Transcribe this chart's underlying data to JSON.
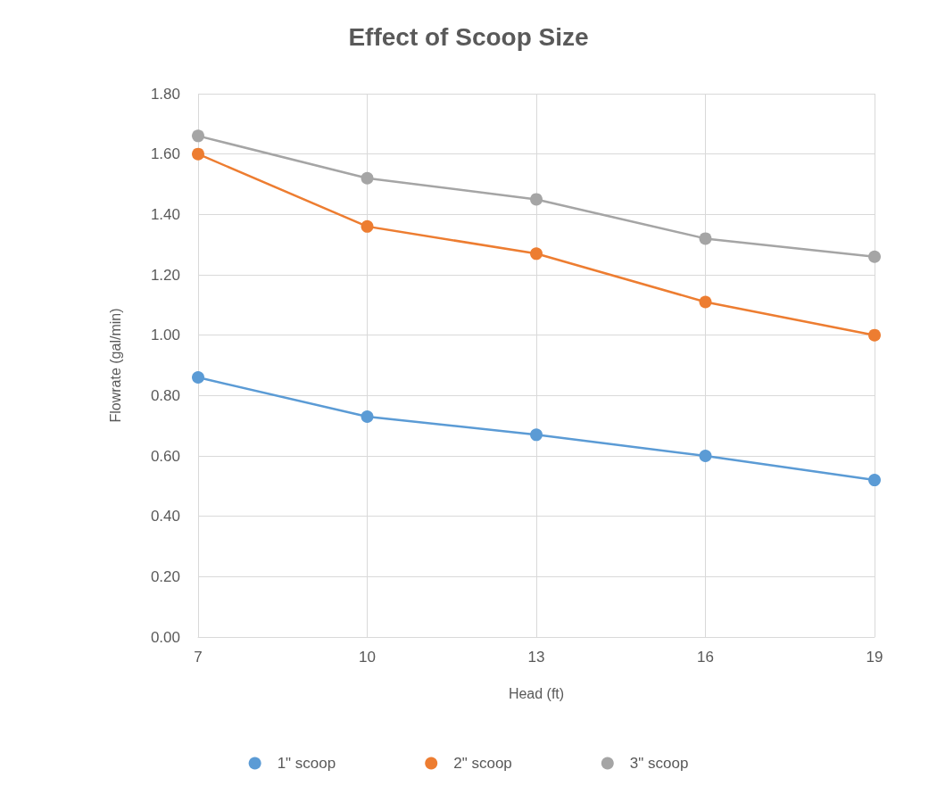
{
  "chart_data": {
    "type": "line",
    "title": "Effect of Scoop Size",
    "xlabel": "Head (ft)",
    "ylabel": "Flowrate (gal/min)",
    "categories": [
      "7",
      "10",
      "13",
      "16",
      "19"
    ],
    "series": [
      {
        "name": "1\" scoop",
        "color": "#5b9bd5",
        "values": [
          0.86,
          0.73,
          0.67,
          0.6,
          0.52
        ]
      },
      {
        "name": "2\" scoop",
        "color": "#ed7d31",
        "values": [
          1.6,
          1.36,
          1.27,
          1.11,
          1.0
        ]
      },
      {
        "name": "3\" scoop",
        "color": "#a5a5a5",
        "values": [
          1.66,
          1.52,
          1.45,
          1.32,
          1.26
        ]
      }
    ],
    "ylim": [
      0,
      1.8
    ],
    "yticks": [
      {
        "value": 0,
        "label": "0.00"
      },
      {
        "value": 0.2,
        "label": "0.20"
      },
      {
        "value": 0.4,
        "label": "0.40"
      },
      {
        "value": 0.6,
        "label": "0.60"
      },
      {
        "value": 0.8,
        "label": "0.80"
      },
      {
        "value": 1.0,
        "label": "1.00"
      },
      {
        "value": 1.2,
        "label": "1.20"
      },
      {
        "value": 1.4,
        "label": "1.40"
      },
      {
        "value": 1.6,
        "label": "1.60"
      },
      {
        "value": 1.8,
        "label": "1.80"
      }
    ],
    "grid": true,
    "legend": "bottom",
    "marker": "circle",
    "line_style": "solid"
  }
}
